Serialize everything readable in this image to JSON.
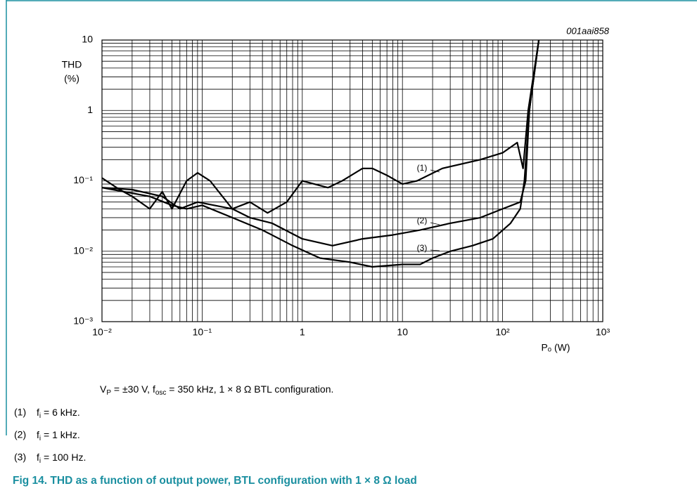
{
  "chart_data": {
    "type": "line",
    "code": "001aai858",
    "y_label": [
      "THD",
      "(%)"
    ],
    "x_label": "Pₒ (W)",
    "log_x": true,
    "log_y": true,
    "grid": true,
    "xlim": [
      0.01,
      1000
    ],
    "ylim": [
      0.001,
      10
    ],
    "xticks": [
      {
        "value": 0.01,
        "label": "10⁻²"
      },
      {
        "value": 0.1,
        "label": "10⁻¹"
      },
      1,
      10,
      {
        "value": 100,
        "label": "10²"
      },
      {
        "value": 1000,
        "label": "10³"
      }
    ],
    "yticks": [
      {
        "value": 0.001,
        "label": "10⁻³"
      },
      {
        "value": 0.01,
        "label": "10⁻²"
      },
      {
        "value": 0.1,
        "label": "10⁻¹"
      },
      1,
      10
    ],
    "series": [
      {
        "name": "(1)",
        "color": "#000000",
        "x": [
          0.01,
          0.015,
          0.02,
          0.03,
          0.04,
          0.05,
          0.07,
          0.09,
          0.12,
          0.2,
          0.3,
          0.45,
          0.7,
          1,
          1.8,
          2.5,
          4,
          5,
          7,
          10,
          14,
          25,
          60,
          100,
          140,
          160,
          180,
          230
        ],
        "values": [
          0.11,
          0.075,
          0.06,
          0.04,
          0.07,
          0.04,
          0.1,
          0.13,
          0.1,
          0.04,
          0.05,
          0.035,
          0.05,
          0.1,
          0.08,
          0.1,
          0.15,
          0.15,
          0.12,
          0.09,
          0.1,
          0.15,
          0.2,
          0.25,
          0.35,
          0.15,
          1,
          10
        ]
      },
      {
        "name": "(2)",
        "color": "#000000",
        "x": [
          0.01,
          0.02,
          0.04,
          0.06,
          0.09,
          0.2,
          0.3,
          0.5,
          1,
          2,
          4,
          8,
          15,
          30,
          60,
          100,
          150,
          170,
          185,
          230
        ],
        "values": [
          0.08,
          0.075,
          0.06,
          0.04,
          0.05,
          0.04,
          0.03,
          0.025,
          0.015,
          0.012,
          0.015,
          0.017,
          0.02,
          0.025,
          0.03,
          0.04,
          0.05,
          0.1,
          1,
          10
        ]
      },
      {
        "name": "(3)",
        "color": "#000000",
        "x": [
          0.01,
          0.03,
          0.05,
          0.07,
          0.1,
          0.2,
          0.4,
          0.8,
          1.5,
          3,
          5,
          10,
          15,
          20,
          30,
          50,
          80,
          120,
          150,
          165,
          185,
          230
        ],
        "values": [
          0.08,
          0.06,
          0.045,
          0.04,
          0.045,
          0.03,
          0.02,
          0.012,
          0.008,
          0.007,
          0.006,
          0.0065,
          0.0065,
          0.008,
          0.01,
          0.012,
          0.015,
          0.025,
          0.04,
          0.1,
          1,
          10
        ]
      }
    ]
  },
  "notes": {
    "conditions": [
      {
        "text": "V"
      },
      {
        "text": "P",
        "sub": true
      },
      {
        "text": " = ±30 V, f"
      },
      {
        "text": "osc",
        "sub": true
      },
      {
        "text": " = 350 kHz, 1 × 8 Ω BTL configuration."
      }
    ],
    "items": [
      {
        "label": "(1)",
        "runs": [
          {
            "text": "f"
          },
          {
            "text": "i",
            "sub": true
          },
          {
            "text": " = 6 kHz."
          }
        ]
      },
      {
        "label": "(2)",
        "runs": [
          {
            "text": "f"
          },
          {
            "text": "i",
            "sub": true
          },
          {
            "text": " = 1 kHz."
          }
        ]
      },
      {
        "label": "(3)",
        "runs": [
          {
            "text": "f"
          },
          {
            "text": "i",
            "sub": true
          },
          {
            "text": " = 100 Hz."
          }
        ]
      }
    ]
  },
  "caption": "Fig 14.  THD as a function of output power, BTL configuration with 1 × 8 Ω load"
}
